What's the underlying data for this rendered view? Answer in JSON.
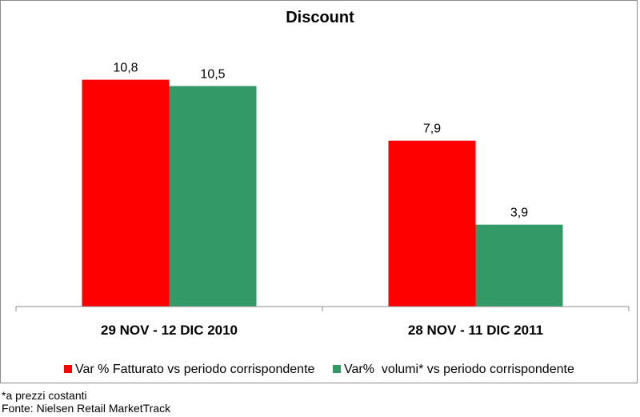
{
  "chart_data": {
    "type": "bar",
    "title": "Discount",
    "categories": [
      "29 NOV - 12 DIC 2010",
      "28 NOV - 11 DIC 2011"
    ],
    "series": [
      {
        "name": "Var % Fatturato vs periodo corrispondente",
        "color": "#ff0000",
        "values": [
          10.8,
          7.9
        ],
        "labels": [
          "10,8",
          "7,9"
        ]
      },
      {
        "name": "Var%  volumi* vs periodo corrispondente",
        "color": "#339966",
        "values": [
          10.5,
          3.9
        ],
        "labels": [
          "10,5",
          "3,9"
        ]
      }
    ],
    "ylim": [
      0,
      12.5
    ],
    "grid": false,
    "legend_position": "bottom"
  },
  "footnotes": {
    "note": "*a prezzi costanti",
    "source": "Fonte: Nielsen Retail MarketTrack"
  }
}
